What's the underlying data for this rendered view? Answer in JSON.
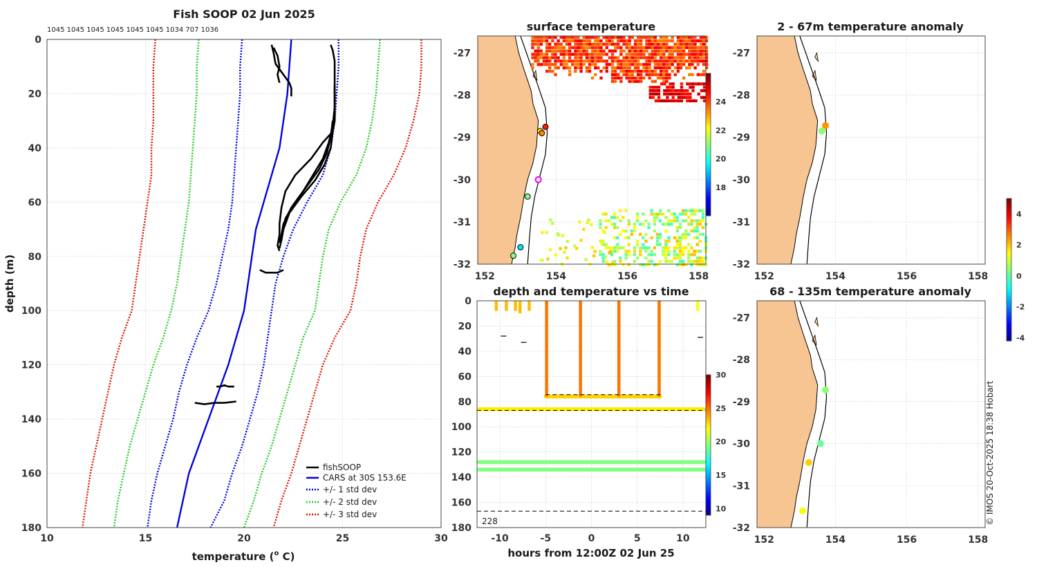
{
  "figure": {
    "copyright": "© IMOS 20-Oct-2025 18:38 Hobart"
  },
  "colors": {
    "profile": "#000000",
    "cars": "#0000dd",
    "std1": "#0000dd",
    "std2": "#22cc22",
    "std3": "#dd1100",
    "land": "#f7c592",
    "coast": "#000000"
  },
  "chart_data": [
    {
      "id": "profile",
      "type": "line",
      "title": "Fish SOOP 02 Jun 2025",
      "subtitle": "1045 1045 1045 1045 1045 1045 1034 707 1036",
      "xlabel": "temperature (",
      "xlabel_sup": "o",
      "xlabel_tail": " C)",
      "ylabel": "depth (m)",
      "xlim": [
        10,
        30
      ],
      "ylim": [
        180,
        0
      ],
      "xticks": [
        10,
        15,
        20,
        25,
        30
      ],
      "yticks": [
        0,
        20,
        40,
        60,
        80,
        100,
        120,
        140,
        160,
        180
      ],
      "grid": true,
      "legend_position": "bottom-right",
      "legend": [
        "fishSOOP",
        "CARS at 30S 153.6E",
        "+/- 1 std dev",
        "+/- 2 std dev",
        "+/- 3 std dev"
      ],
      "cars": {
        "depth": [
          0,
          10,
          20,
          30,
          40,
          50,
          60,
          70,
          80,
          90,
          100,
          110,
          120,
          130,
          140,
          150,
          160,
          170,
          180
        ],
        "temp": [
          22.4,
          22.3,
          22.2,
          22.0,
          21.8,
          21.4,
          21.0,
          20.6,
          20.4,
          20.2,
          20.0,
          19.6,
          19.2,
          18.7,
          18.2,
          17.7,
          17.2,
          16.9,
          16.6
        ]
      },
      "std_bands": [
        {
          "name": "+/- 1 std dev",
          "minus": [
            19.9,
            19.8,
            19.8,
            19.7,
            19.6,
            19.5,
            19.4,
            19.2,
            18.9,
            18.6,
            18.2,
            17.6,
            17.1,
            16.7,
            16.4,
            16.0,
            15.6,
            15.3,
            15.1
          ],
          "plus": [
            24.8,
            24.8,
            24.7,
            24.6,
            24.4,
            24.0,
            23.2,
            22.5,
            22.0,
            21.6,
            21.4,
            21.2,
            21.0,
            20.7,
            20.3,
            19.9,
            19.4,
            19.0,
            18.3
          ]
        },
        {
          "name": "+/- 2 std dev",
          "minus": [
            17.7,
            17.6,
            17.6,
            17.5,
            17.4,
            17.3,
            17.2,
            17.0,
            16.8,
            16.6,
            16.3,
            15.9,
            15.4,
            15.0,
            14.6,
            14.2,
            13.9,
            13.6,
            13.4
          ],
          "plus": [
            26.9,
            26.8,
            26.7,
            26.5,
            26.2,
            25.7,
            24.9,
            24.3,
            24.0,
            23.8,
            23.6,
            23.0,
            22.6,
            22.2,
            21.8,
            21.4,
            20.9,
            20.5,
            20.0
          ]
        },
        {
          "name": "+/- 3 std dev",
          "minus": [
            15.5,
            15.4,
            15.4,
            15.4,
            15.3,
            15.3,
            15.1,
            14.9,
            14.7,
            14.5,
            14.3,
            13.8,
            13.4,
            13.1,
            12.8,
            12.5,
            12.2,
            12.0,
            11.8
          ],
          "plus": [
            29.0,
            29.0,
            28.9,
            28.6,
            28.2,
            27.6,
            26.8,
            26.2,
            25.9,
            25.7,
            25.4,
            24.6,
            24.0,
            23.6,
            23.2,
            22.8,
            22.4,
            21.9,
            21.5
          ]
        }
      ],
      "fishsoop": [
        {
          "depth": [
            2,
            4,
            8,
            12,
            15,
            17
          ],
          "temp": [
            24.4,
            24.5,
            24.6,
            24.6,
            24.6,
            24.6
          ]
        },
        {
          "depth": [
            17,
            22,
            26,
            30,
            34,
            38,
            44,
            50,
            56,
            62,
            68,
            72,
            76,
            78
          ],
          "temp": [
            24.6,
            24.6,
            24.6,
            24.6,
            24.5,
            24.0,
            23.4,
            22.6,
            22.1,
            21.9,
            21.8,
            21.8,
            21.7,
            21.8
          ]
        },
        {
          "depth": [
            17,
            24,
            30,
            34,
            40,
            46,
            52,
            58,
            64,
            70,
            74,
            77
          ],
          "temp": [
            24.6,
            24.6,
            24.6,
            24.5,
            24.4,
            24.1,
            23.6,
            22.9,
            22.3,
            22.0,
            21.9,
            21.8
          ]
        },
        {
          "depth": [
            17,
            25,
            32,
            38,
            44,
            50,
            56,
            62,
            68,
            72,
            75
          ],
          "temp": [
            24.6,
            24.6,
            24.5,
            24.3,
            24.0,
            23.5,
            23.0,
            22.4,
            22.0,
            21.9,
            21.8
          ]
        },
        {
          "depth": [
            30,
            36,
            42,
            48,
            54,
            60,
            66,
            70,
            73
          ],
          "temp": [
            24.5,
            24.4,
            24.2,
            23.8,
            23.2,
            22.6,
            22.1,
            22.0,
            21.9
          ]
        },
        {
          "depth": [
            2,
            5,
            9,
            12,
            14,
            16,
            18,
            21
          ],
          "temp": [
            21.4,
            21.5,
            21.6,
            21.9,
            22.1,
            22.3,
            22.4,
            22.4
          ]
        },
        {
          "depth": [
            3,
            6,
            10,
            13,
            16
          ],
          "temp": [
            21.5,
            21.7,
            21.8,
            21.7,
            21.8
          ]
        },
        {
          "depth": [
            85,
            86,
            86,
            86,
            85
          ],
          "temp": [
            20.8,
            21.1,
            21.4,
            21.7,
            22.0
          ]
        },
        {
          "depth": [
            128,
            128,
            127.5,
            128,
            128
          ],
          "temp": [
            18.6,
            18.8,
            19.0,
            19.2,
            19.5
          ]
        },
        {
          "depth": [
            134,
            134.5,
            134,
            134,
            133.5
          ],
          "temp": [
            17.5,
            18.0,
            18.5,
            19.0,
            19.6
          ]
        }
      ]
    },
    {
      "id": "sst",
      "type": "heatmap",
      "title": "surface temperature",
      "xlim": [
        151.8,
        158.2
      ],
      "ylim": [
        -32,
        -26.6
      ],
      "xticks": [
        152,
        154,
        156,
        158
      ],
      "yticks": [
        -27,
        -28,
        -29,
        -30,
        -31,
        -32
      ],
      "colorbar": {
        "min": 16,
        "max": 26,
        "ticks": [
          18,
          20,
          22,
          24
        ]
      },
      "stations": [
        {
          "lon": 153.7,
          "lat": -28.75,
          "temp": 24.5
        },
        {
          "lon": 153.55,
          "lat": -28.85,
          "temp": 22.5
        },
        {
          "lon": 153.6,
          "lat": -28.9,
          "temp": 23.5
        },
        {
          "lon": 153.2,
          "lat": -30.4,
          "temp": 21.0
        },
        {
          "lon": 153.0,
          "lat": -31.6,
          "temp": 19.5
        },
        {
          "lon": 152.8,
          "lat": -31.8,
          "temp": 21.0
        },
        {
          "lon": 153.5,
          "lat": -30.0,
          "temp": null
        }
      ]
    },
    {
      "id": "anom1",
      "type": "scatter",
      "title": "2 - 67m temperature anomaly",
      "xlim": [
        151.8,
        158.2
      ],
      "ylim": [
        -32,
        -26.6
      ],
      "xticks": [
        152,
        154,
        156,
        158
      ],
      "yticks": [
        -27,
        -28,
        -29,
        -30,
        -31,
        -32
      ],
      "points": [
        {
          "lon": 153.72,
          "lat": -28.72,
          "anom": 2.5
        },
        {
          "lon": 153.62,
          "lat": -28.85,
          "anom": 0.5
        }
      ]
    },
    {
      "id": "anom2",
      "type": "scatter",
      "title": "68 - 135m temperature anomaly",
      "xlim": [
        151.8,
        158.2
      ],
      "ylim": [
        -32,
        -26.6
      ],
      "xticks": [
        152,
        154,
        156,
        158
      ],
      "yticks": [
        -27,
        -28,
        -29,
        -30,
        -31,
        -32
      ],
      "colorbar": {
        "min": -4.2,
        "max": 5,
        "ticks": [
          4,
          2,
          0,
          -2,
          -4
        ]
      },
      "points": [
        {
          "lon": 153.72,
          "lat": -28.72,
          "anom": 0.5
        },
        {
          "lon": 153.58,
          "lat": -30.0,
          "anom": 0.2
        },
        {
          "lon": 153.25,
          "lat": -30.45,
          "anom": 2.0
        },
        {
          "lon": 153.08,
          "lat": -31.6,
          "anom": 1.5
        }
      ]
    },
    {
      "id": "timeseries",
      "type": "scatter",
      "title": "depth and temperature vs time",
      "xlabel": "hours from 12:00Z 02 Jun 25",
      "xlim": [
        -12.5,
        12.5
      ],
      "ylim": [
        180,
        0
      ],
      "xticks": [
        -10,
        -5,
        0,
        5,
        10
      ],
      "yticks": [
        0,
        20,
        40,
        60,
        80,
        100,
        120,
        140,
        160,
        180
      ],
      "colorbar": {
        "min": 9,
        "max": 30,
        "ticks": [
          30,
          25,
          20,
          15,
          10
        ]
      },
      "annotation": "228",
      "dashed_depths": [
        87,
        167
      ],
      "tracks": [
        {
          "from": -12.3,
          "to": 12.3,
          "depth": 86,
          "temp": 22.5
        },
        {
          "from": -12.3,
          "to": 12.3,
          "depth": 128,
          "temp": 19.5
        },
        {
          "from": -12.3,
          "to": 12.3,
          "depth": 134,
          "temp": 19.5
        },
        {
          "from": -5.0,
          "to": 7.5,
          "depth": 76,
          "temp": 23.0
        }
      ],
      "spikes": [
        {
          "t": -10.4,
          "from": 0,
          "to": 8,
          "temp": 23.5
        },
        {
          "t": -9.3,
          "from": 0,
          "to": 8,
          "temp": 23.5
        },
        {
          "t": -8.3,
          "from": 0,
          "to": 8,
          "temp": 23.5
        },
        {
          "t": -7.8,
          "from": 0,
          "to": 10,
          "temp": 23.5
        },
        {
          "t": -6.8,
          "from": 0,
          "to": 8,
          "temp": 23.5
        },
        {
          "t": -4.9,
          "from": 0,
          "to": 76,
          "temp": 25.0
        },
        {
          "t": -1.2,
          "from": 0,
          "to": 76,
          "temp": 25.0
        },
        {
          "t": 3.0,
          "from": 0,
          "to": 76,
          "temp": 25.0
        },
        {
          "t": 7.4,
          "from": 0,
          "to": 76,
          "temp": 25.0
        },
        {
          "t": 11.6,
          "from": 0,
          "to": 8,
          "temp": 22.0
        }
      ],
      "dashes": [
        {
          "t": -9.6,
          "depth": 28
        },
        {
          "t": -7.4,
          "depth": 33
        },
        {
          "t": 11.9,
          "depth": 29
        }
      ]
    }
  ]
}
